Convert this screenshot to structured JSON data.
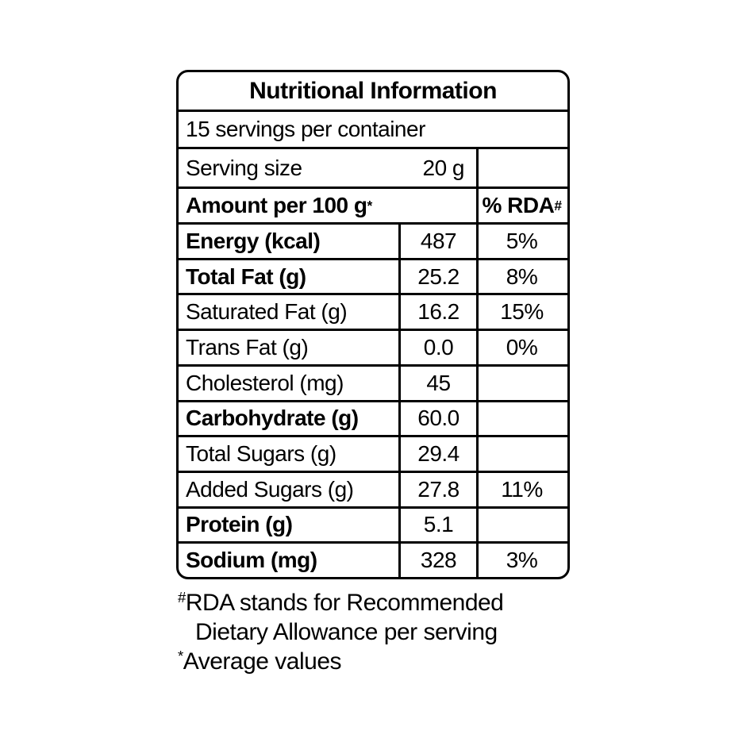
{
  "page": {
    "background": "#ffffff"
  },
  "nutrition_label": {
    "title": "Nutritional Information",
    "servings_per_container": "15 servings per container",
    "serving_size": {
      "label": "Serving size",
      "value": "20 g"
    },
    "columns": {
      "amount_header": "Amount per 100 g",
      "amount_header_sup": "*",
      "rda_header": "% RDA",
      "rda_header_sup": "#"
    },
    "rows": [
      {
        "name": "Energy (kcal)",
        "amount": "487",
        "rda": "5%"
      },
      {
        "name": "Total Fat (g)",
        "amount": "25.2",
        "rda": "8%"
      },
      {
        "name": "Saturated Fat (g)",
        "amount": "16.2",
        "rda": "15%"
      },
      {
        "name": "Trans Fat (g)",
        "amount": "0.0",
        "rda": "0%"
      },
      {
        "name": "Cholesterol (mg)",
        "amount": "45",
        "rda": ""
      },
      {
        "name": "Carbohydrate (g)",
        "amount": "60.0",
        "rda": ""
      },
      {
        "name": "Total Sugars (g)",
        "amount": "29.4",
        "rda": ""
      },
      {
        "name": "Added Sugars (g)",
        "amount": "27.8",
        "rda": "11%"
      },
      {
        "name": "Protein (g)",
        "amount": "5.1",
        "rda": ""
      },
      {
        "name": "Sodium (mg)",
        "amount": "328",
        "rda": "3%"
      }
    ],
    "footnotes": {
      "line1_sup": "#",
      "line1": "RDA stands for Recommended",
      "line2": "Dietary Allowance per serving",
      "line3_sup": "*",
      "line3": "Average values"
    },
    "colors": {
      "border": "#000000",
      "text": "#000000",
      "background": "#ffffff"
    }
  }
}
